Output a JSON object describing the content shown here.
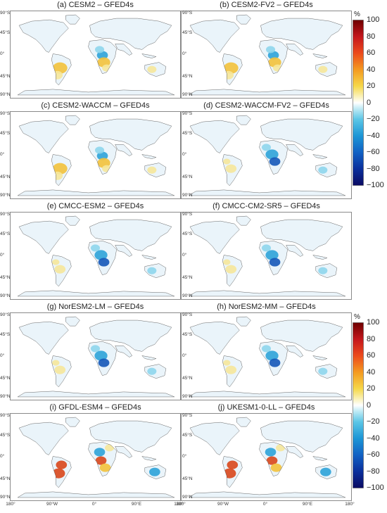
{
  "panels": [
    {
      "title": "(a) CESM2 – GFED4s"
    },
    {
      "title": "(b) CESM2-FV2 – GFED4s"
    },
    {
      "title": "(c) CESM2-WACCM – GFED4s"
    },
    {
      "title": "(d) CESM2-WACCM-FV2 – GFED4s"
    },
    {
      "title": "(e) CMCC-ESM2 – GFED4s"
    },
    {
      "title": "(f) CMCC-CM2-SR5 – GFED4s"
    },
    {
      "title": "(g) NorESM2-LM – GFED4s"
    },
    {
      "title": "(h) NorESM2-MM – GFED4s"
    },
    {
      "title": "(i) GFDL-ESM4 – GFED4s"
    },
    {
      "title": "(j) UKESM1-0-LL – GFED4s"
    }
  ],
  "lat_labels": [
    "90°S",
    "45°S",
    "0°",
    "45°N",
    "90°N"
  ],
  "lon_labels": [
    "180°",
    "90°W",
    "0°",
    "90°E",
    "180°"
  ],
  "colorbar": {
    "unit": "%",
    "ticks": [
      "100",
      "80",
      "60",
      "40",
      "20",
      "0",
      "−20",
      "−40",
      "−60",
      "−80",
      "−100"
    ],
    "colors": [
      "#7a0a0a",
      "#c81e1e",
      "#ec5a1c",
      "#f5a623",
      "#f6d648",
      "#ffffff",
      "#7fd6ea",
      "#1fa4d9",
      "#1466c8",
      "#0c2fa0",
      "#0a0f6e"
    ]
  },
  "map_colors": {
    "land_light": "#eaf4fa",
    "positive_weak": "#f6e79a",
    "positive_mid": "#f3c23b",
    "positive_strong": "#d9471b",
    "negative_weak": "#8ed6ec",
    "negative_mid": "#2ea3d8",
    "negative_strong": "#1558b8",
    "coast": "#555555"
  }
}
